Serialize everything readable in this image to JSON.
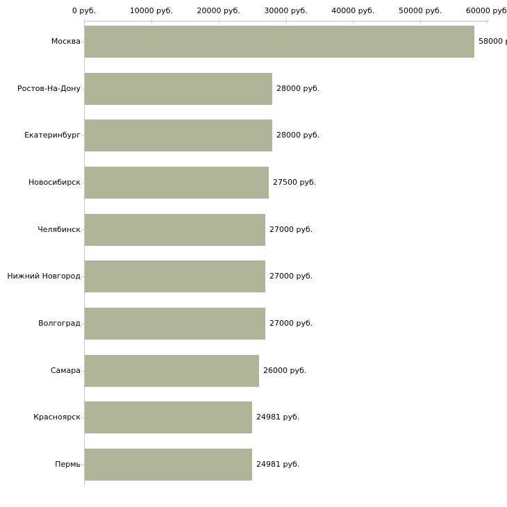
{
  "chart_data": {
    "type": "bar",
    "orientation": "horizontal",
    "title": "",
    "categories": [
      "Москва",
      "Ростов-На-Дону",
      "Екатеринбург",
      "Новосибирск",
      "Челябинск",
      "Нижний Новгород",
      "Волгоград",
      "Самара",
      "Красноярск",
      "Пермь"
    ],
    "values": [
      58000,
      28000,
      28000,
      27500,
      27000,
      27000,
      27000,
      26000,
      24981,
      24981
    ],
    "value_labels": [
      "58000 р",
      "28000 руб.",
      "28000 руб.",
      "27500 руб.",
      "27000 руб.",
      "27000 руб.",
      "27000 руб.",
      "26000 руб.",
      "24981 руб.",
      "24981 руб."
    ],
    "x_axis": {
      "position": "top",
      "range": [
        0,
        60000
      ],
      "ticks": [
        0,
        10000,
        20000,
        30000,
        40000,
        50000,
        60000
      ],
      "tick_labels": [
        "0 руб.",
        "10000 руб.",
        "20000 руб.",
        "30000 руб.",
        "40000 руб.",
        "50000 руб.",
        "60000 руб."
      ]
    },
    "grid": false,
    "legend": false,
    "colors": {
      "bar": "#b0b59a",
      "axis_line": "#c0c0c0",
      "tick": "#d9dcbc",
      "category_tick": "#d9d4c4",
      "text": "#000000",
      "background": "#ffffff"
    }
  }
}
